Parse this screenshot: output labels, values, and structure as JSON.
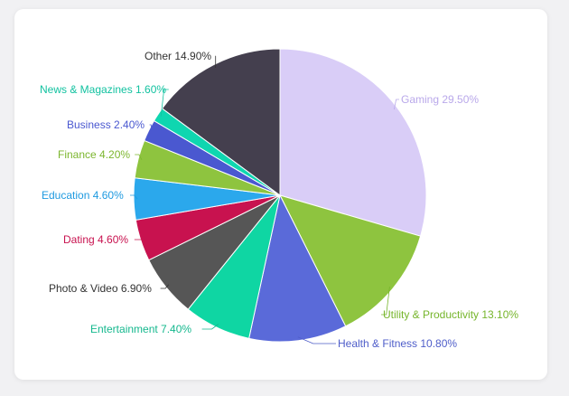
{
  "chart_data": {
    "type": "pie",
    "title": "",
    "legend": "none",
    "slices": [
      {
        "label": "Gaming 29.50%",
        "value": 29.5,
        "color": "#d9cdf7",
        "label_color": "#b9a8ea"
      },
      {
        "label": "Utility & Productivity 13.10%",
        "value": 13.1,
        "color": "#8ec43f",
        "label_color": "#76b52b"
      },
      {
        "label": "Health & Fitness 10.80%",
        "value": 10.8,
        "color": "#5a6ad9",
        "label_color": "#4e5dc9"
      },
      {
        "label": "Entertainment 7.40%",
        "value": 7.4,
        "color": "#0fd6a3",
        "label_color": "#15b88e"
      },
      {
        "label": "Photo & Video 6.90%",
        "value": 6.9,
        "color": "#565656",
        "label_color": "#333333"
      },
      {
        "label": "Dating 4.60%",
        "value": 4.6,
        "color": "#c8124f",
        "label_color": "#c8124f"
      },
      {
        "label": "Education 4.60%",
        "value": 4.6,
        "color": "#2ba8ec",
        "label_color": "#1e9ae0"
      },
      {
        "label": "Finance 4.20%",
        "value": 4.2,
        "color": "#8ec43f",
        "label_color": "#7cb62e"
      },
      {
        "label": "Business 2.40%",
        "value": 2.4,
        "color": "#4a58d0",
        "label_color": "#4a58d0"
      },
      {
        "label": "News & Magazines 1.60%",
        "value": 1.6,
        "color": "#0fd6b0",
        "label_color": "#12c2a0"
      },
      {
        "label": "Other 14.90%",
        "value": 14.9,
        "color": "#443f4e",
        "label_color": "#333333"
      }
    ]
  }
}
